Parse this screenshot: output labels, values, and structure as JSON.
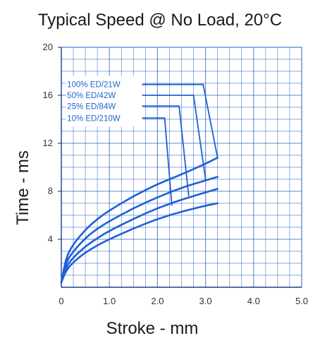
{
  "chart_data": {
    "type": "line",
    "title": "Typical Speed @ No Load, 20°C",
    "xlabel": "Stroke - mm",
    "ylabel": "Time - ms",
    "xlim": [
      0,
      5.0
    ],
    "ylim": [
      0,
      20
    ],
    "xticks": [
      "0",
      "1.0",
      "2.0",
      "3.0",
      "4.0",
      "5.0"
    ],
    "yticks": [
      "4",
      "8",
      "12",
      "16",
      "20"
    ],
    "grid": true,
    "colors": {
      "series": "#1f5fd6",
      "grid": "#2a62c8",
      "legend": "#2266cc"
    },
    "series": [
      {
        "name": "100% ED/21W",
        "x": [
          0,
          0.1,
          0.25,
          0.5,
          0.75,
          1.0,
          1.5,
          2.0,
          2.5,
          3.0,
          3.25
        ],
        "y": [
          0.4,
          2.5,
          3.6,
          4.8,
          5.7,
          6.4,
          7.6,
          8.6,
          9.4,
          10.3,
          10.8
        ]
      },
      {
        "name": "50% ED/42W",
        "x": [
          0,
          0.1,
          0.25,
          0.5,
          0.75,
          1.0,
          1.5,
          2.0,
          2.5,
          3.0,
          3.25
        ],
        "y": [
          0.4,
          2.1,
          3.0,
          4.1,
          4.9,
          5.5,
          6.6,
          7.5,
          8.3,
          8.9,
          9.2
        ]
      },
      {
        "name": "25% ED/84W",
        "x": [
          0,
          0.1,
          0.25,
          0.5,
          0.75,
          1.0,
          1.5,
          2.0,
          2.5,
          3.0,
          3.25
        ],
        "y": [
          0.4,
          1.7,
          2.5,
          3.4,
          4.1,
          4.7,
          5.7,
          6.6,
          7.3,
          7.9,
          8.2
        ]
      },
      {
        "name": "10% ED/210W",
        "x": [
          0,
          0.1,
          0.25,
          0.5,
          0.75,
          1.0,
          1.5,
          2.0,
          2.5,
          3.0,
          3.25
        ],
        "y": [
          0.4,
          1.4,
          2.1,
          2.9,
          3.5,
          4.0,
          4.9,
          5.7,
          6.3,
          6.8,
          7.0
        ]
      }
    ],
    "legend": {
      "placement": "top-left",
      "entries": [
        {
          "label": "100% ED/21W",
          "level": 16.9,
          "break": 2.95,
          "drop_to": 10.8,
          "end": 3.25
        },
        {
          "label": "50% ED/42W",
          "level": 16.0,
          "break": 2.75,
          "drop_to": 9.0,
          "end": 3.0
        },
        {
          "label": "25% ED/84W",
          "level": 15.1,
          "break": 2.45,
          "drop_to": 7.6,
          "end": 2.65
        },
        {
          "label": "10% ED/210W",
          "level": 14.1,
          "break": 2.15,
          "drop_to": 6.8,
          "end": 2.3
        }
      ]
    }
  }
}
